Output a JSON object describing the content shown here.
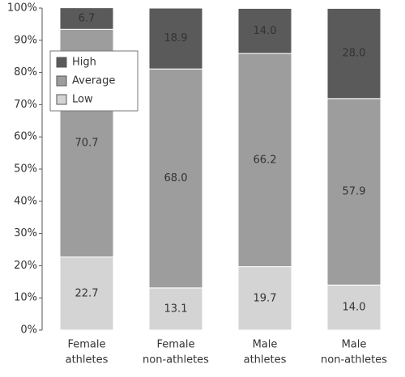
{
  "chart_data": {
    "type": "stacked_bar",
    "categories": [
      [
        "Female",
        "athletes"
      ],
      [
        "Female",
        "non-athletes"
      ],
      [
        "Male",
        "athletes"
      ],
      [
        "Male",
        "non-athletes"
      ]
    ],
    "series": [
      {
        "name": "High",
        "color": "#5a5a5a",
        "values": [
          6.7,
          18.9,
          14.0,
          28.0
        ],
        "value_labels": [
          "6.7",
          "18.9",
          "14.0",
          "28.0"
        ]
      },
      {
        "name": "Average",
        "color": "#9d9d9d",
        "values": [
          70.7,
          68.0,
          66.2,
          57.9
        ],
        "value_labels": [
          "70.7",
          "68.0",
          "66.2",
          "57.9"
        ]
      },
      {
        "name": "Low",
        "color": "#d4d4d4",
        "values": [
          22.7,
          13.1,
          19.7,
          14.0
        ],
        "value_labels": [
          "22.7",
          "13.1",
          "19.7",
          "14.0"
        ]
      }
    ],
    "ylim": [
      0,
      100
    ],
    "yticks": [
      {
        "value": 0,
        "label": "0%"
      },
      {
        "value": 10,
        "label": "10%"
      },
      {
        "value": 20,
        "label": "20%"
      },
      {
        "value": 30,
        "label": "30%"
      },
      {
        "value": 40,
        "label": "40%"
      },
      {
        "value": 50,
        "label": "50%"
      },
      {
        "value": 60,
        "label": "60%"
      },
      {
        "value": 70,
        "label": "70%"
      },
      {
        "value": 80,
        "label": "80%"
      },
      {
        "value": 90,
        "label": "90%"
      },
      {
        "value": 100,
        "label": "100%"
      }
    ],
    "legend": "upper left"
  }
}
